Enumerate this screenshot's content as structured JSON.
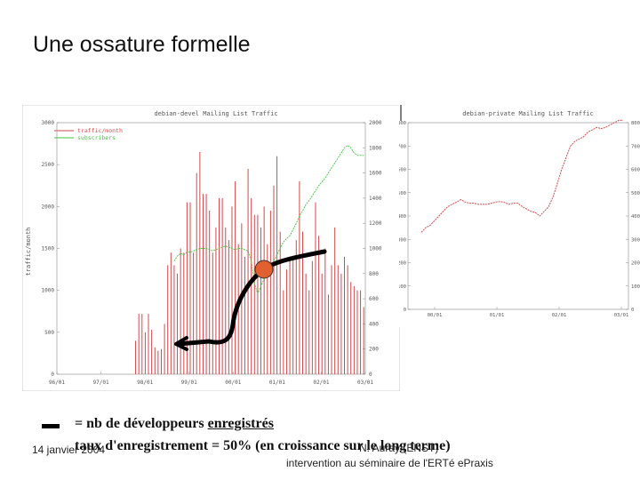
{
  "slide": {
    "title": "Une ossature formelle",
    "legend_text": "= nb de développeurs ",
    "legend_text_underlined": "enregistrés",
    "rate_text": "taux d'enregistrement = 50% (en croissance sur le long terme)",
    "footer_date": "14 janvier 2004",
    "footer_author": "N. Auray (ENST)",
    "footer_event": "intervention au séminaire de l'ERTé ePraxis"
  },
  "chart_data": [
    {
      "type": "bar",
      "title": "debian-devel Mailing List Traffic",
      "ylabel": "traffic/month",
      "legend": [
        "traffic/month",
        "subscribers"
      ],
      "legend_position": "top-left",
      "y_ticks_left": [
        "0",
        "500",
        "1000",
        "1500",
        "2000",
        "2500",
        "3000"
      ],
      "y_ticks_right": [
        "0",
        "200",
        "400",
        "600",
        "800",
        "1000",
        "1200",
        "1400",
        "1600",
        "1800",
        "2000"
      ],
      "x_ticks": [
        "96/01",
        "97/01",
        "98/01",
        "99/01",
        "00/01",
        "01/01",
        "02/01",
        "03/01"
      ],
      "ylim": [
        0,
        3000
      ],
      "y2lim": [
        0,
        2000
      ],
      "colors": {
        "bars": "#d24a4a",
        "subscribers": "#3cc83c",
        "developers": "#000000",
        "marker": "#e06030"
      },
      "series": [
        {
          "name": "traffic/month",
          "values": [
            0,
            0,
            0,
            0,
            0,
            0,
            0,
            0,
            0,
            0,
            0,
            0,
            0,
            0,
            0,
            0,
            0,
            0,
            0,
            0,
            0,
            0,
            0,
            0,
            400,
            720,
            720,
            500,
            720,
            530,
            320,
            280,
            300,
            600,
            1300,
            1450,
            1300,
            1200,
            1500,
            1450,
            2050,
            2050,
            1450,
            2400,
            2650,
            2150,
            2150,
            1950,
            1450,
            1750,
            2100,
            2100,
            1750,
            1600,
            2000,
            2300,
            1550,
            1800,
            1400,
            2450,
            2100,
            1900,
            1900,
            1750,
            2000,
            1550,
            1950,
            2250,
            2600,
            1700,
            1000,
            1250,
            1400,
            1400,
            1600,
            2300,
            1700,
            1200,
            1000,
            1350,
            2050,
            1650,
            1200,
            1500,
            950,
            1300,
            1750,
            1300,
            1200,
            1400,
            1300,
            1100,
            1050,
            1000,
            1000,
            800
          ]
        },
        {
          "name": "subscribers",
          "values": [
            null,
            null,
            null,
            null,
            null,
            null,
            null,
            null,
            null,
            null,
            null,
            null,
            null,
            null,
            null,
            null,
            null,
            null,
            null,
            null,
            null,
            null,
            null,
            null,
            null,
            null,
            null,
            null,
            null,
            null,
            null,
            null,
            null,
            null,
            null,
            null,
            900,
            940,
            960,
            950,
            970,
            970,
            980,
            990,
            1000,
            1000,
            1000,
            990,
            980,
            990,
            1000,
            1010,
            1020,
            1010,
            1000,
            990,
            1000,
            1000,
            990,
            980,
            900,
            720,
            640,
            700,
            760,
            800,
            860,
            900,
            950,
            1000,
            1050,
            1080,
            1100,
            1150,
            1200,
            1260,
            1300,
            1350,
            1380,
            1420,
            1460,
            1500,
            1530,
            1560,
            1600,
            1640,
            1680,
            1720,
            1760,
            1800,
            1820,
            1800,
            1760,
            1740,
            1740,
            1740
          ]
        }
      ]
    },
    {
      "type": "line",
      "title": "debian-private Mailing List Traffic",
      "y_ticks_left": [
        "0",
        "100",
        "200",
        "300",
        "400",
        "500",
        "600",
        "700",
        "800"
      ],
      "y_ticks_right": [
        "0",
        "100",
        "200",
        "300",
        "400",
        "500",
        "600",
        "700",
        "800"
      ],
      "x_ticks": [
        "00/01",
        "01/01",
        "02/01",
        "03/01"
      ],
      "ylim": [
        0,
        800
      ],
      "colors": {
        "line": "#d24a4a"
      },
      "legend_position": "top-right",
      "series": [
        {
          "values": [
            330,
            350,
            360,
            380,
            400,
            420,
            440,
            450,
            460,
            470,
            460,
            455,
            455,
            450,
            450,
            450,
            455,
            460,
            462,
            458,
            450,
            455,
            455,
            440,
            430,
            420,
            415,
            400,
            420,
            440,
            480,
            540,
            600,
            650,
            700,
            720,
            730,
            740,
            760,
            770,
            780,
            775,
            780,
            790,
            800,
            810,
            810
          ]
        }
      ]
    }
  ]
}
